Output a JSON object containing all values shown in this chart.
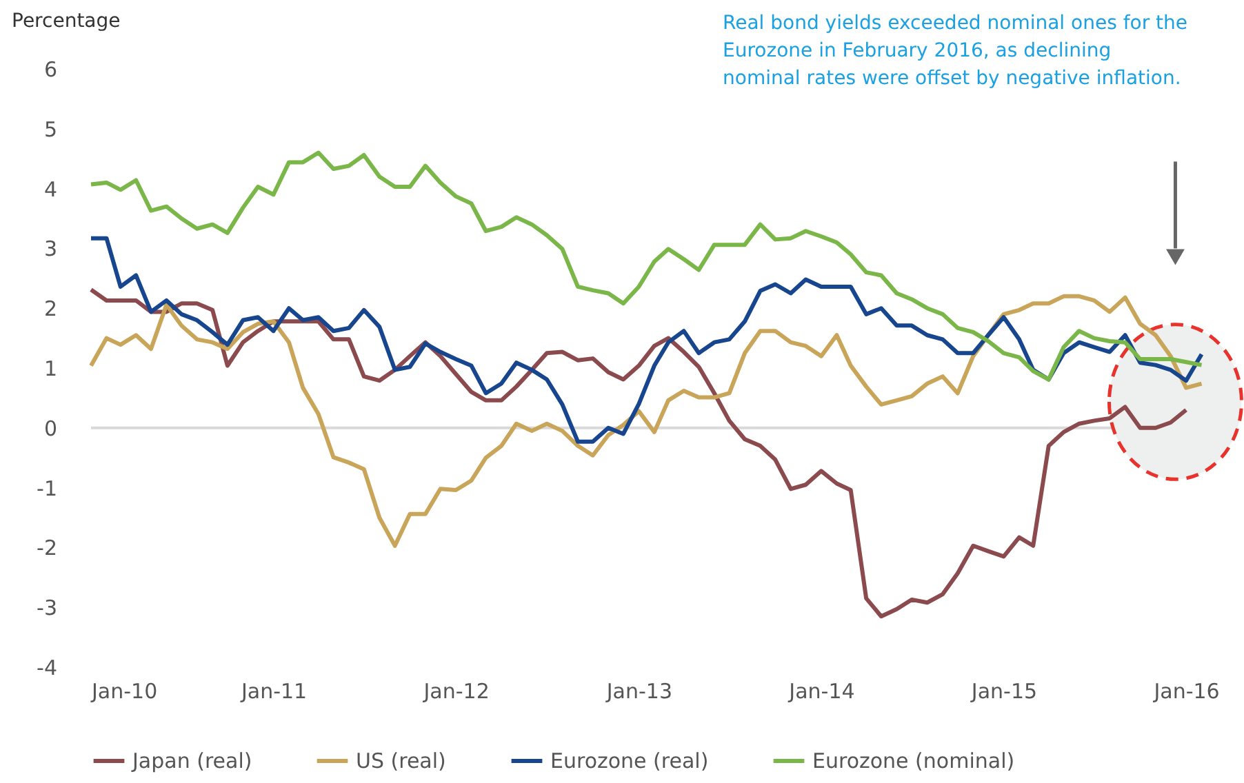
{
  "chart_data": {
    "type": "line",
    "ylabel": "Percentage",
    "x": [
      "2010-01",
      "2010-02",
      "2010-03",
      "2010-04",
      "2010-05",
      "2010-06",
      "2010-07",
      "2010-08",
      "2010-09",
      "2010-10",
      "2010-11",
      "2010-12",
      "2011-01",
      "2011-02",
      "2011-03",
      "2011-04",
      "2011-05",
      "2011-06",
      "2011-07",
      "2011-08",
      "2011-09",
      "2011-10",
      "2011-11",
      "2011-12",
      "2012-01",
      "2012-02",
      "2012-03",
      "2012-04",
      "2012-05",
      "2012-06",
      "2012-07",
      "2012-08",
      "2012-09",
      "2012-10",
      "2012-11",
      "2012-12",
      "2013-01",
      "2013-02",
      "2013-03",
      "2013-04",
      "2013-05",
      "2013-06",
      "2013-07",
      "2013-08",
      "2013-09",
      "2013-10",
      "2013-11",
      "2013-12",
      "2014-01",
      "2014-02",
      "2014-03",
      "2014-04",
      "2014-05",
      "2014-06",
      "2014-07",
      "2014-08",
      "2014-09",
      "2014-10",
      "2014-11",
      "2014-12",
      "2015-01",
      "2015-02",
      "2015-03",
      "2015-04",
      "2015-05",
      "2015-06",
      "2015-07",
      "2015-08",
      "2015-09",
      "2015-10",
      "2015-11",
      "2015-12",
      "2016-01",
      "2016-02"
    ],
    "series": [
      {
        "name": "Japan (real)",
        "color": "#8b4a4e",
        "values": [
          2.31,
          2.13,
          2.13,
          2.13,
          1.94,
          1.94,
          2.08,
          2.08,
          1.97,
          1.04,
          1.43,
          1.62,
          1.78,
          1.78,
          1.78,
          1.78,
          1.48,
          1.48,
          0.86,
          0.79,
          0.97,
          1.2,
          1.43,
          1.2,
          0.9,
          0.6,
          0.46,
          0.46,
          0.69,
          0.97,
          1.25,
          1.27,
          1.13,
          1.16,
          0.93,
          0.81,
          1.04,
          1.37,
          1.5,
          1.27,
          1.02,
          0.58,
          0.12,
          -0.19,
          -0.3,
          -0.53,
          -1.02,
          -0.95,
          -0.72,
          -0.93,
          -1.04,
          -2.85,
          -3.15,
          -3.03,
          -2.87,
          -2.92,
          -2.78,
          -2.43,
          -1.97,
          -2.06,
          -2.15,
          -1.83,
          -1.97,
          -0.3,
          -0.07,
          0.07,
          0.12,
          0.16,
          0.35,
          0,
          0,
          0.09,
          0.3,
          null
        ]
      },
      {
        "name": "US (real)",
        "color": "#c9a55a",
        "values": [
          1.04,
          1.5,
          1.39,
          1.55,
          1.32,
          2.06,
          1.71,
          1.48,
          1.43,
          1.32,
          1.6,
          1.74,
          1.78,
          1.43,
          0.67,
          0.23,
          -0.49,
          -0.58,
          -0.69,
          -1.5,
          -1.97,
          -1.44,
          -1.44,
          -1.02,
          -1.04,
          -0.88,
          -0.5,
          -0.3,
          0.07,
          -0.05,
          0.07,
          -0.05,
          -0.3,
          -0.46,
          -0.12,
          0.05,
          0.28,
          -0.07,
          0.46,
          0.62,
          0.51,
          0.51,
          0.58,
          1.25,
          1.62,
          1.62,
          1.43,
          1.37,
          1.2,
          1.55,
          1.04,
          0.69,
          0.39,
          0.46,
          0.53,
          0.74,
          0.86,
          0.58,
          1.2,
          1.55,
          1.9,
          1.97,
          2.08,
          2.08,
          2.2,
          2.2,
          2.13,
          1.94,
          2.18,
          1.74,
          1.55,
          1.2,
          0.67,
          0.74
        ]
      },
      {
        "name": "Eurozone (real)",
        "color": "#17468e",
        "values": [
          3.17,
          3.17,
          2.36,
          2.55,
          1.94,
          2.13,
          1.9,
          1.8,
          1.6,
          1.39,
          1.8,
          1.85,
          1.62,
          2.0,
          1.8,
          1.85,
          1.62,
          1.67,
          1.97,
          1.69,
          0.97,
          1.02,
          1.41,
          1.27,
          1.15,
          1.04,
          0.58,
          0.74,
          1.09,
          0.97,
          0.81,
          0.39,
          -0.23,
          -0.23,
          0,
          -0.1,
          0.4,
          1.04,
          1.43,
          1.62,
          1.25,
          1.43,
          1.48,
          1.78,
          2.29,
          2.4,
          2.25,
          2.48,
          2.36,
          2.36,
          2.36,
          1.9,
          2.0,
          1.71,
          1.71,
          1.55,
          1.48,
          1.25,
          1.25,
          1.55,
          1.85,
          1.48,
          0.97,
          0.81,
          1.25,
          1.43,
          1.35,
          1.27,
          1.55,
          1.09,
          1.05,
          0.97,
          0.79,
          1.23
        ]
      },
      {
        "name": "Eurozone (nominal)",
        "color": "#7ab648",
        "values": [
          4.07,
          4.1,
          3.98,
          4.14,
          3.63,
          3.7,
          3.5,
          3.33,
          3.4,
          3.26,
          3.68,
          4.03,
          3.9,
          4.44,
          4.44,
          4.6,
          4.33,
          4.38,
          4.56,
          4.2,
          4.03,
          4.03,
          4.38,
          4.1,
          3.87,
          3.75,
          3.29,
          3.36,
          3.52,
          3.4,
          3.22,
          2.99,
          2.36,
          2.3,
          2.25,
          2.08,
          2.36,
          2.78,
          2.99,
          2.82,
          2.64,
          3.06,
          3.06,
          3.06,
          3.4,
          3.15,
          3.17,
          3.29,
          3.2,
          3.1,
          2.9,
          2.6,
          2.55,
          2.25,
          2.15,
          2.0,
          1.9,
          1.67,
          1.6,
          1.45,
          1.25,
          1.18,
          0.95,
          0.81,
          1.35,
          1.62,
          1.5,
          1.45,
          1.43,
          1.15,
          1.15,
          1.15,
          1.1,
          1.05
        ]
      }
    ],
    "xlim": [
      "2010-01",
      "2016-04"
    ],
    "xticks": [
      {
        "value": "2010-01",
        "label": "Jan-10"
      },
      {
        "value": "2011-01",
        "label": "Jan-11"
      },
      {
        "value": "2012-01",
        "label": "Jan-12"
      },
      {
        "value": "2013-01",
        "label": "Jan-13"
      },
      {
        "value": "2014-01",
        "label": "Jan-14"
      },
      {
        "value": "2015-01",
        "label": "Jan-15"
      },
      {
        "value": "2016-01",
        "label": "Jan-16"
      }
    ],
    "ylim": [
      -4,
      6
    ],
    "yticks": [
      -4,
      -3,
      -2,
      -1,
      0,
      1,
      2,
      3,
      4,
      5,
      6
    ],
    "ref_lines": [
      {
        "axis": "y",
        "value": 0,
        "color": "#d9d9d9"
      }
    ],
    "annotations": [
      "Real bond yields exceeded nominal ones for the\nEurozone in February 2016, as declining\nnominal rates were offset by negative inflation."
    ],
    "grid": false,
    "legend": "bottom",
    "marker": "none",
    "line_style": "solid"
  }
}
